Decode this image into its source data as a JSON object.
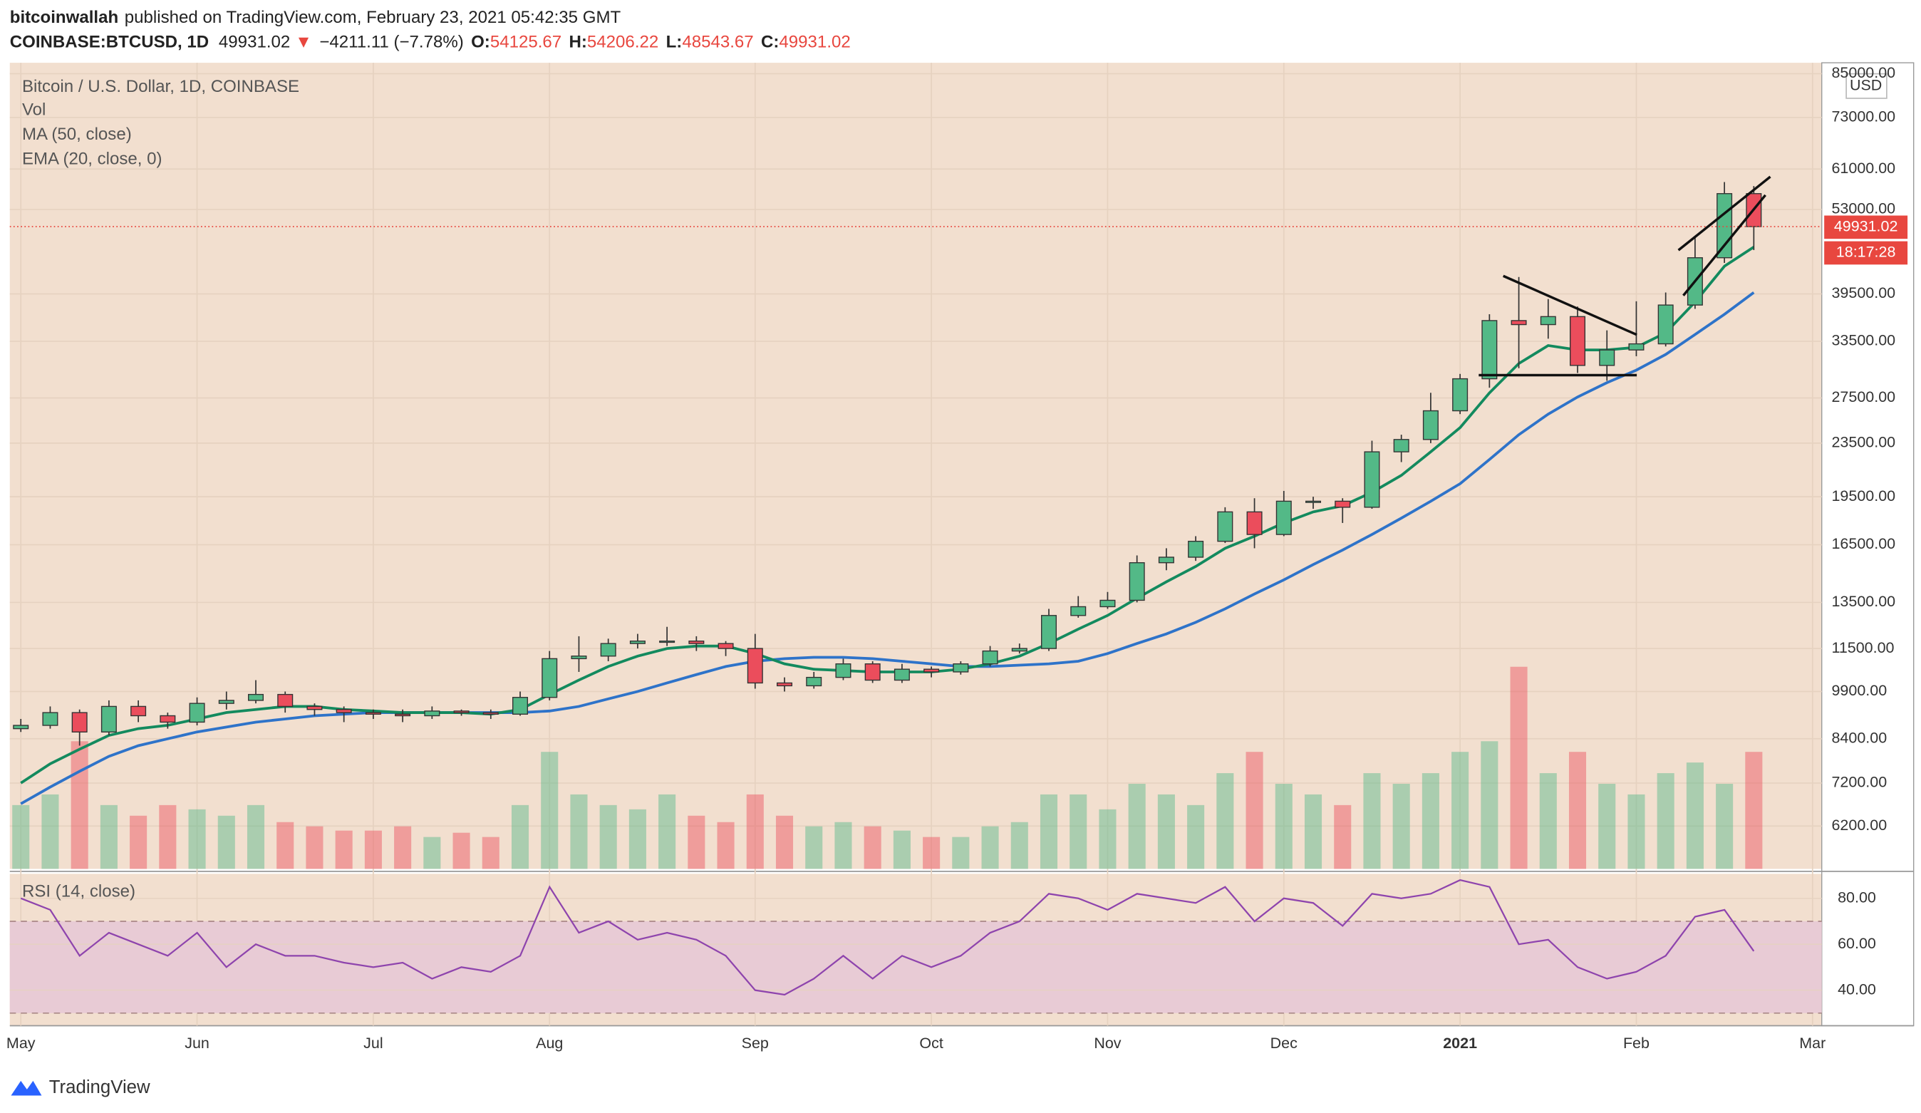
{
  "header": {
    "author": "bitcoinwallah",
    "published": "published on TradingView.com, February 23, 2021 05:42:35 GMT",
    "symbol": "COINBASE:BTCUSD, 1D",
    "arrow": "▼",
    "change": "−4211.11 (−7.78%)",
    "ohlc": [
      {
        "label": "O:",
        "value": 54125.67
      },
      {
        "label": "H:",
        "value": 54206.22
      },
      {
        "label": "L:",
        "value": 48543.67
      },
      {
        "label": "C:",
        "value": 49931.02
      }
    ]
  },
  "chart_data": {
    "type": "candlestick",
    "title": "Bitcoin / U.S. Dollar, 1D, COINBASE",
    "categories": [
      "May",
      null,
      null,
      null,
      null,
      null,
      "Jun",
      null,
      null,
      null,
      null,
      null,
      "Jul",
      null,
      null,
      null,
      null,
      null,
      "Aug",
      null,
      null,
      null,
      null,
      null,
      null,
      "Sep",
      null,
      null,
      null,
      null,
      null,
      "Oct",
      null,
      null,
      null,
      null,
      null,
      "Nov",
      null,
      null,
      null,
      null,
      null,
      "Dec",
      null,
      null,
      null,
      null,
      null,
      "2021",
      null,
      null,
      null,
      null,
      null,
      "Feb",
      null,
      null,
      null,
      null,
      null,
      "Mar"
    ],
    "open": [
      8700,
      8800,
      9200,
      8600,
      9400,
      9100,
      8900,
      9500,
      9600,
      9800,
      9400,
      9300,
      9200,
      9150,
      9100,
      9250,
      9200,
      9150,
      9700,
      11100,
      11200,
      11700,
      11800,
      11800,
      11700,
      11500,
      10200,
      10100,
      10400,
      10900,
      10300,
      10700,
      10600,
      10900,
      11400,
      11500,
      12900,
      13300,
      13600,
      15500,
      15800,
      16700,
      18500,
      17100,
      19200,
      19200,
      18800,
      22800,
      23800,
      26300,
      29400,
      36000,
      35500,
      36500,
      30800,
      32500,
      33200,
      38000,
      44800,
      56000,
      null,
      null
    ],
    "high": [
      9000,
      9400,
      9300,
      9600,
      9600,
      9200,
      9700,
      9900,
      10300,
      9900,
      9500,
      9400,
      9300,
      9300,
      9400,
      9300,
      9300,
      9900,
      11400,
      12000,
      11900,
      12100,
      12400,
      12000,
      11800,
      12100,
      10400,
      10600,
      11100,
      11000,
      10900,
      10800,
      11000,
      11600,
      11700,
      13200,
      13800,
      14000,
      15900,
      16300,
      17000,
      18800,
      19400,
      19900,
      19500,
      19400,
      23700,
      24200,
      28000,
      29900,
      36800,
      41900,
      38800,
      37800,
      34800,
      38500,
      39700,
      48100,
      58300,
      57500,
      null,
      null
    ],
    "low": [
      8600,
      8700,
      8200,
      8500,
      8900,
      8700,
      8800,
      9300,
      9500,
      9200,
      9100,
      8900,
      9000,
      8900,
      9000,
      9100,
      9000,
      9100,
      9600,
      10600,
      11000,
      11500,
      11600,
      11400,
      11200,
      10000,
      9900,
      10000,
      10300,
      10200,
      10200,
      10400,
      10500,
      10800,
      11300,
      11400,
      12800,
      13200,
      13500,
      15100,
      15600,
      16600,
      16300,
      17000,
      18700,
      17800,
      18700,
      22000,
      23500,
      26000,
      28500,
      30500,
      33800,
      30000,
      29200,
      31800,
      32900,
      37500,
      44000,
      46000,
      null,
      null
    ],
    "close": [
      8800,
      9200,
      8600,
      9400,
      9100,
      8900,
      9500,
      9600,
      9800,
      9400,
      9300,
      9200,
      9150,
      9100,
      9250,
      9200,
      9150,
      9700,
      11100,
      11200,
      11700,
      11800,
      11800,
      11700,
      11500,
      10200,
      10100,
      10400,
      10900,
      10300,
      10700,
      10600,
      10900,
      11400,
      11500,
      12900,
      13300,
      13600,
      15500,
      15800,
      16700,
      18500,
      17100,
      19200,
      19200,
      18800,
      22800,
      23800,
      26300,
      29400,
      36000,
      35500,
      36500,
      30800,
      32500,
      33200,
      38000,
      44800,
      56000,
      49931,
      null,
      null
    ],
    "up_color": "#53b987",
    "down_color": "#eb4d5c",
    "ylim": [
      5340,
      88300
    ],
    "log_scale": true,
    "grid": true,
    "yticks": [
      {
        "value": 85000,
        "label": "85000.00"
      },
      {
        "value": 73000,
        "label": "73000.00"
      },
      {
        "value": 61000,
        "label": "61000.00"
      },
      {
        "value": 53000,
        "label": "53000.00"
      },
      {
        "value": 39500,
        "label": "39500.00"
      },
      {
        "value": 33500,
        "label": "33500.00"
      },
      {
        "value": 27500,
        "label": "27500.00"
      },
      {
        "value": 23500,
        "label": "23500.00"
      },
      {
        "value": 19500,
        "label": "19500.00"
      },
      {
        "value": 16500,
        "label": "16500.00"
      },
      {
        "value": 13500,
        "label": "13500.00"
      },
      {
        "value": 11500,
        "label": "11500.00"
      },
      {
        "value": 9900,
        "label": "9900.00"
      },
      {
        "value": 8400,
        "label": "8400.00"
      },
      {
        "value": 7200,
        "label": "7200.00"
      },
      {
        "value": 6200,
        "label": "6200.00"
      }
    ],
    "currency": "USD",
    "last_price": 49931.02,
    "countdown": "18:17:28",
    "overlays": [
      {
        "name": "MA (50, close)",
        "color": "#2e73c9",
        "values": [
          6700,
          7100,
          7500,
          7900,
          8200,
          8400,
          8600,
          8750,
          8900,
          9000,
          9100,
          9150,
          9200,
          9200,
          9200,
          9200,
          9200,
          9200,
          9250,
          9400,
          9650,
          9900,
          10200,
          10500,
          10800,
          11000,
          11100,
          11150,
          11150,
          11100,
          11000,
          10900,
          10800,
          10800,
          10850,
          10900,
          11000,
          11300,
          11700,
          12100,
          12600,
          13200,
          13900,
          14600,
          15400,
          16200,
          17100,
          18100,
          19200,
          20400,
          22200,
          24200,
          26000,
          27600,
          29000,
          30300,
          32000,
          34300,
          36800,
          39700,
          null,
          null
        ]
      },
      {
        "name": "EMA (20, close, 0)",
        "color": "#138a5e",
        "values": [
          7200,
          7700,
          8100,
          8500,
          8700,
          8800,
          9000,
          9200,
          9300,
          9400,
          9400,
          9300,
          9250,
          9200,
          9200,
          9200,
          9150,
          9300,
          9800,
          10300,
          10800,
          11200,
          11500,
          11600,
          11600,
          11300,
          10900,
          10700,
          10650,
          10600,
          10600,
          10600,
          10700,
          10900,
          11200,
          11700,
          12300,
          12900,
          13700,
          14500,
          15300,
          16300,
          17000,
          17800,
          18500,
          18900,
          19800,
          21000,
          22800,
          24800,
          28000,
          31000,
          33000,
          32500,
          32500,
          32800,
          34500,
          38400,
          43500,
          46500,
          null,
          null
        ]
      }
    ],
    "volume": {
      "name": "Vol",
      "values": [
        30,
        35,
        60,
        30,
        25,
        30,
        28,
        25,
        30,
        22,
        20,
        18,
        18,
        20,
        15,
        17,
        15,
        30,
        55,
        35,
        30,
        28,
        35,
        25,
        22,
        35,
        25,
        20,
        22,
        20,
        18,
        15,
        15,
        20,
        22,
        35,
        35,
        28,
        40,
        35,
        30,
        45,
        55,
        40,
        35,
        30,
        45,
        40,
        45,
        55,
        60,
        95,
        45,
        55,
        40,
        35,
        45,
        50,
        40,
        55,
        null,
        null
      ]
    },
    "rsi": {
      "name": "RSI (14, close)",
      "color": "#8e44ad",
      "ylim": [
        24.5,
        90.7
      ],
      "bands": [
        30,
        70
      ],
      "yticks": [
        {
          "value": 80,
          "label": "80.00"
        },
        {
          "value": 60,
          "label": "60.00"
        },
        {
          "value": 40,
          "label": "40.00"
        }
      ],
      "values": [
        80,
        75,
        55,
        65,
        60,
        55,
        65,
        50,
        60,
        55,
        55,
        52,
        50,
        52,
        45,
        50,
        48,
        55,
        85,
        65,
        70,
        62,
        65,
        62,
        55,
        40,
        38,
        45,
        55,
        45,
        55,
        50,
        55,
        65,
        70,
        82,
        80,
        75,
        82,
        80,
        78,
        85,
        70,
        80,
        78,
        68,
        82,
        80,
        82,
        88,
        85,
        60,
        62,
        50,
        45,
        48,
        55,
        72,
        75,
        57,
        null,
        null
      ]
    }
  },
  "footer": {
    "logo": "TradingView"
  }
}
